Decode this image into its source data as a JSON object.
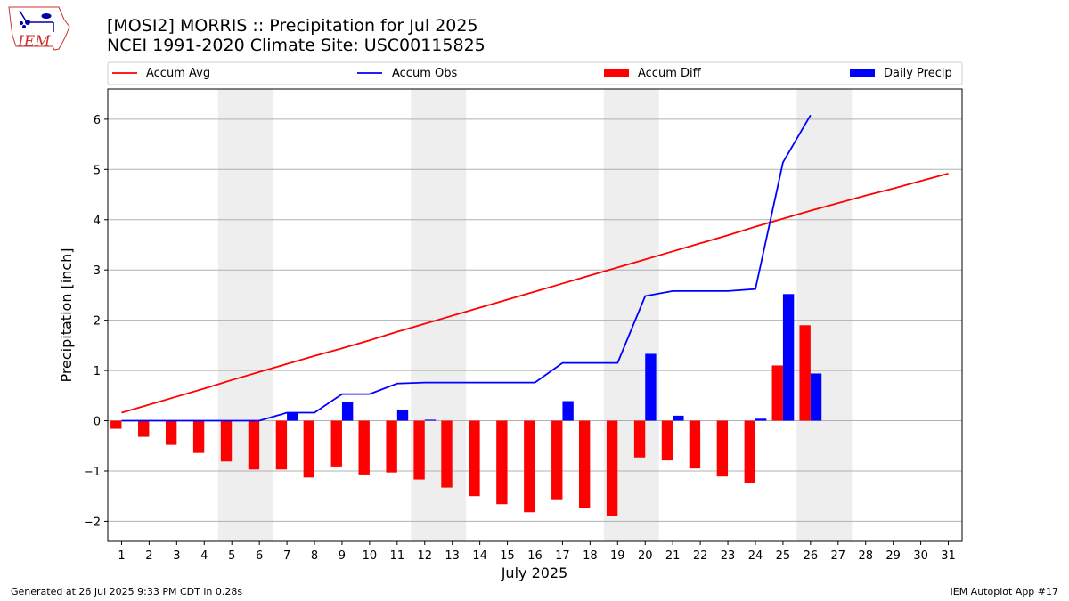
{
  "header": {
    "logo_text": "IEM",
    "title_line1": "[MOSI2] MORRIS :: Precipitation for Jul 2025",
    "title_line2": "NCEI 1991-2020 Climate Site: USC00115825"
  },
  "footer": {
    "generated": "Generated at 26 Jul 2025 9:33 PM CDT in 0.28s",
    "app": "IEM Autoplot App #17"
  },
  "chart_data": {
    "type": "bar",
    "xlabel": "July 2025",
    "ylabel": "Precipitation [inch]",
    "xlim": [
      0.5,
      31.5
    ],
    "ylim": [
      -2.4,
      6.6
    ],
    "yticks": [
      -2,
      -1,
      0,
      1,
      2,
      3,
      4,
      5,
      6
    ],
    "xticks": [
      1,
      2,
      3,
      4,
      5,
      6,
      7,
      8,
      9,
      10,
      11,
      12,
      13,
      14,
      15,
      16,
      17,
      18,
      19,
      20,
      21,
      22,
      23,
      24,
      25,
      26,
      27,
      28,
      29,
      30,
      31
    ],
    "grid": true,
    "legend_placement": "top",
    "weekend_shading": [
      [
        5,
        6
      ],
      [
        12,
        13
      ],
      [
        19,
        20
      ],
      [
        26,
        27
      ]
    ],
    "colors": {
      "accum_avg": "#ff0000",
      "accum_obs": "#0000ff",
      "accum_diff": "#ff0000",
      "daily_precip": "#0000ff",
      "shade": "#eeeeee",
      "grid": "#b0b0b0"
    },
    "legend": [
      "Accum Avg",
      "Accum Obs",
      "Accum Diff",
      "Daily Precip"
    ],
    "series": [
      {
        "name": "Accum Avg",
        "kind": "line",
        "x": [
          1,
          2,
          3,
          4,
          5,
          6,
          7,
          8,
          9,
          10,
          11,
          12,
          13,
          14,
          15,
          16,
          17,
          18,
          19,
          20,
          21,
          22,
          23,
          24,
          25,
          26,
          27,
          28,
          29,
          30,
          31
        ],
        "values": [
          0.16,
          0.32,
          0.48,
          0.64,
          0.81,
          0.97,
          1.13,
          1.29,
          1.44,
          1.6,
          1.77,
          1.93,
          2.09,
          2.25,
          2.41,
          2.57,
          2.73,
          2.89,
          3.05,
          3.21,
          3.37,
          3.53,
          3.69,
          3.86,
          4.02,
          4.18,
          4.33,
          4.48,
          4.62,
          4.77,
          4.92
        ]
      },
      {
        "name": "Accum Obs",
        "kind": "line",
        "x": [
          1,
          2,
          3,
          4,
          5,
          6,
          7,
          8,
          9,
          10,
          11,
          12,
          13,
          14,
          15,
          16,
          17,
          18,
          19,
          20,
          21,
          22,
          23,
          24,
          25,
          26
        ],
        "values": [
          0,
          0,
          0,
          0,
          0,
          0,
          0.16,
          0.16,
          0.53,
          0.53,
          0.74,
          0.76,
          0.76,
          0.76,
          0.76,
          0.76,
          1.15,
          1.15,
          1.15,
          2.48,
          2.58,
          2.58,
          2.58,
          2.62,
          5.14,
          6.08
        ]
      },
      {
        "name": "Accum Diff",
        "kind": "bar",
        "x": [
          1,
          2,
          3,
          4,
          5,
          6,
          7,
          8,
          9,
          10,
          11,
          12,
          13,
          14,
          15,
          16,
          17,
          18,
          19,
          20,
          21,
          22,
          23,
          24,
          25,
          26
        ],
        "values": [
          -0.16,
          -0.32,
          -0.48,
          -0.64,
          -0.81,
          -0.97,
          -0.97,
          -1.13,
          -0.91,
          -1.07,
          -1.03,
          -1.17,
          -1.33,
          -1.5,
          -1.66,
          -1.82,
          -1.58,
          -1.74,
          -1.9,
          -0.73,
          -0.79,
          -0.95,
          -1.11,
          -1.24,
          1.1,
          1.9
        ]
      },
      {
        "name": "Daily Precip",
        "kind": "bar",
        "x": [
          1,
          2,
          3,
          4,
          5,
          6,
          7,
          8,
          9,
          10,
          11,
          12,
          13,
          14,
          15,
          16,
          17,
          18,
          19,
          20,
          21,
          22,
          23,
          24,
          25,
          26
        ],
        "values": [
          0,
          0,
          0,
          0,
          0,
          0,
          0.16,
          0,
          0.37,
          0,
          0.21,
          0.02,
          0,
          0,
          0,
          0,
          0.39,
          0,
          0,
          1.33,
          0.1,
          0,
          0,
          0.04,
          2.52,
          0.94
        ]
      }
    ]
  }
}
